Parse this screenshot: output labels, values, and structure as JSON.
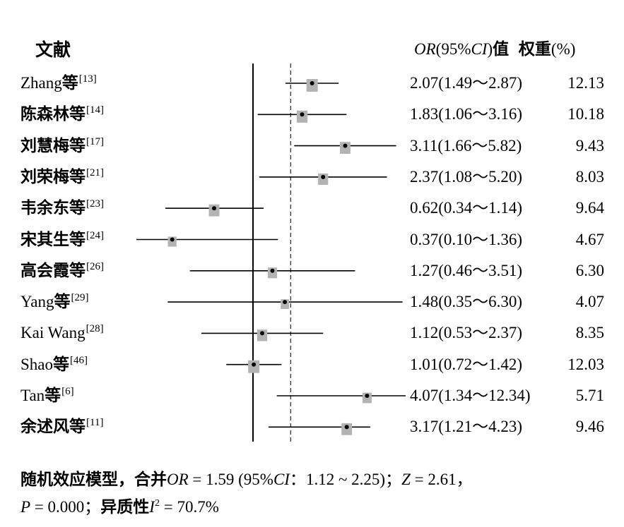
{
  "header": {
    "study_label": "文献",
    "or_label_it": "OR",
    "or_label_mid": "(95%",
    "or_label_ci": "CI",
    "or_label_end": ")",
    "or_label_cjk": "值",
    "weight_label": "权重",
    "weight_unit": "(%)"
  },
  "studies": [
    {
      "name": "Zhang",
      "suffix": "等",
      "ref": "[13]",
      "or": "2.07",
      "ci": "(1.49～2.87)",
      "weight": "12.13"
    },
    {
      "name": "",
      "suffix": "陈森林等",
      "ref": "[14]",
      "or": "1.83",
      "ci": "(1.06～3.16)",
      "weight": "10.18"
    },
    {
      "name": "",
      "suffix": "刘慧梅等",
      "ref": "[17]",
      "or": "3.11",
      "ci": "(1.66～5.82)",
      "weight": "9.43"
    },
    {
      "name": "",
      "suffix": "刘荣梅等",
      "ref": "[21]",
      "or": "2.37",
      "ci": "(1.08～5.20)",
      "weight": "8.03"
    },
    {
      "name": "",
      "suffix": "韦余东等",
      "ref": "[23]",
      "or": "0.62",
      "ci": "(0.34～1.14)",
      "weight": "9.64"
    },
    {
      "name": "",
      "suffix": "宋其生等",
      "ref": "[24]",
      "or": "0.37",
      "ci": "(0.10～1.36)",
      "weight": "4.67"
    },
    {
      "name": "",
      "suffix": "高会霞等",
      "ref": "[26]",
      "or": "1.27",
      "ci": "(0.46～3.51)",
      "weight": "6.30"
    },
    {
      "name": "Yang",
      "suffix": "等",
      "ref": "[29]",
      "or": "1.48",
      "ci": "(0.35～6.30)",
      "weight": "4.07"
    },
    {
      "name": "Kai Wang",
      "suffix": "",
      "ref": "[28]",
      "or": "1.12",
      "ci": "(0.53～2.37)",
      "weight": "8.35"
    },
    {
      "name": "Shao",
      "suffix": "等",
      "ref": "[46]",
      "or": "1.01",
      "ci": "(0.72～1.42)",
      "weight": "12.03"
    },
    {
      "name": "Tan",
      "suffix": "等",
      "ref": "[6]",
      "or": "4.07",
      "ci": "(1.34～12.34)",
      "weight": "5.71"
    },
    {
      "name": "",
      "suffix": "余述风等",
      "ref": "[11]",
      "or": "3.17",
      "ci": "(1.21～4.23)",
      "weight": "9.46"
    }
  ],
  "footer": {
    "line1_a": "随机效应模型，合并",
    "line1_or": "OR",
    "line1_b": " = 1.59 (95%",
    "line1_ci": "CI",
    "line1_c": "：1.12 ~ 2.25)；",
    "line1_z": "Z",
    "line1_d": " = 2.61，",
    "line2_p": "P",
    "line2_a": " = 0.000；",
    "line2_b": "异质性",
    "line2_i": "I",
    "line2_sup": "2",
    "line2_c": " = 70.7%"
  },
  "chart_data": {
    "type": "forest",
    "title": "",
    "xlabel": "",
    "ylabel": "",
    "x_scale": "log",
    "null_line": 1,
    "pooled_line": 1.59,
    "categories": [
      "Zhang等[13]",
      "陈森林等[14]",
      "刘慧梅等[17]",
      "刘荣梅等[21]",
      "韦余东等[23]",
      "宋其生等[24]",
      "高会霞等[26]",
      "Yang等[29]",
      "Kai Wang[28]",
      "Shao等[46]",
      "Tan等[6]",
      "余述风等[11]"
    ],
    "or": [
      2.07,
      1.83,
      3.11,
      2.37,
      0.62,
      0.37,
      1.27,
      1.48,
      1.12,
      1.01,
      4.07,
      3.17
    ],
    "ci_low": [
      1.49,
      1.06,
      1.66,
      1.08,
      0.34,
      0.1,
      0.46,
      0.35,
      0.53,
      0.72,
      1.34,
      1.21
    ],
    "ci_high": [
      2.87,
      3.16,
      5.82,
      5.2,
      1.14,
      1.36,
      3.51,
      6.3,
      2.37,
      1.42,
      12.34,
      4.23
    ],
    "weight": [
      12.13,
      10.18,
      9.43,
      8.03,
      9.64,
      4.67,
      6.3,
      4.07,
      8.35,
      12.03,
      5.71,
      9.46
    ],
    "colors": {
      "box": "#b3b3b3",
      "line": "#000000",
      "point": "#000000"
    }
  }
}
